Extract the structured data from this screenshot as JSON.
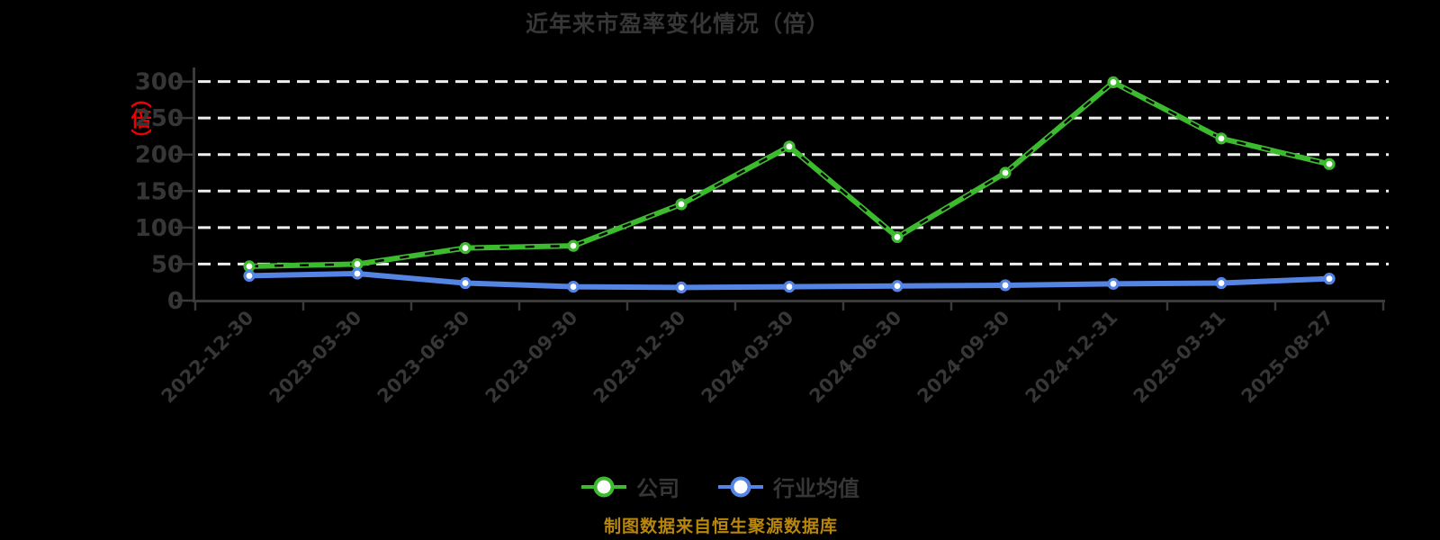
{
  "title": "近年来市盈率变化情况（倍）",
  "y_axis": {
    "unit_label": "（倍）",
    "ticks": [
      0,
      50,
      100,
      150,
      200,
      250,
      300
    ]
  },
  "footer_note": "制图数据来自恒生聚源数据库",
  "colors": {
    "background": "#000000",
    "title_text": "#363636",
    "axis_text": "#363636",
    "grid_line": "#EFEFEF",
    "axis_line": "#3A3A3A",
    "company_series": "#3CBB2E",
    "industry_series": "#5484E4",
    "unit_label": "#EE0000",
    "footer_note": "#B8860B",
    "marker_fill": "#FFFFFF"
  },
  "chart_data": {
    "type": "line",
    "title": "近年来市盈率变化情况（倍）",
    "unit": "倍",
    "categories": [
      "2022-12-30",
      "2023-03-30",
      "2023-06-30",
      "2023-09-30",
      "2023-12-30",
      "2024-03-30",
      "2024-06-30",
      "2024-09-30",
      "2024-12-31",
      "2025-03-31",
      "2025-08-27"
    ],
    "series": [
      {
        "name": "公司",
        "color": "#3CBB2E",
        "values": [
          47,
          50,
          72,
          75,
          132,
          211,
          87,
          175,
          299,
          222,
          187
        ]
      },
      {
        "name": "行业均值",
        "color": "#5484E4",
        "values": [
          34,
          37,
          24,
          19,
          18,
          19,
          20,
          21,
          23,
          24,
          30
        ]
      }
    ],
    "ylim": [
      0,
      300
    ],
    "y_ticks": [
      0,
      50,
      100,
      150,
      200,
      250,
      300
    ],
    "grid": "horizontal-dashed",
    "legend_position": "bottom",
    "x_label_rotation": 45
  }
}
